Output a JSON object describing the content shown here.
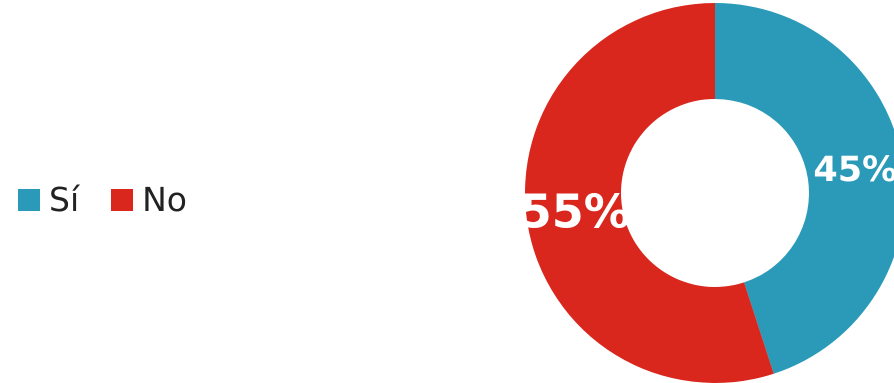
{
  "colors": {
    "si": "#2a9ab8",
    "no": "#d9271e"
  },
  "chart_data": {
    "type": "pie",
    "variant": "donut",
    "title": "",
    "categories": [
      "Sí",
      "No"
    ],
    "values": [
      45,
      55
    ],
    "value_labels": [
      "45%",
      "55%"
    ],
    "legend_position": "left"
  }
}
